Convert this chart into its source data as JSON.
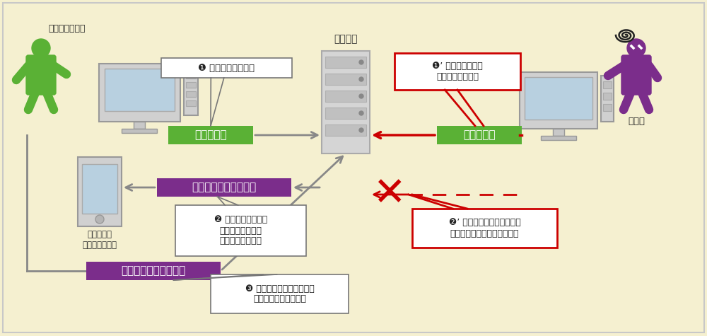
{
  "bg_color": "#f5f0d0",
  "green": "#5ab135",
  "purple": "#7b2d8b",
  "red": "#cc0000",
  "label_user": "正規のユーザー",
  "label_service": "サービス",
  "label_attacker": "攻撃者",
  "label_smartphone": "ユーザーの\nスマートフォン",
  "label_password": "パスワード",
  "label_otp": "ワンタイムパスワード",
  "balloon1": "❶ パスワードを入力",
  "balloon2": "❷ 登録した電話番号\nなどにワンタイム\nパスワードを送信",
  "balloon3": "❸ ワンタイムパスワードを\n入力してログイン成功",
  "balloon1r": "❶’ 不正に入手した\nパスワードを入力",
  "balloon2r": "❷’ ワンタイムパスワードが\n分からないのでログイン失敗"
}
